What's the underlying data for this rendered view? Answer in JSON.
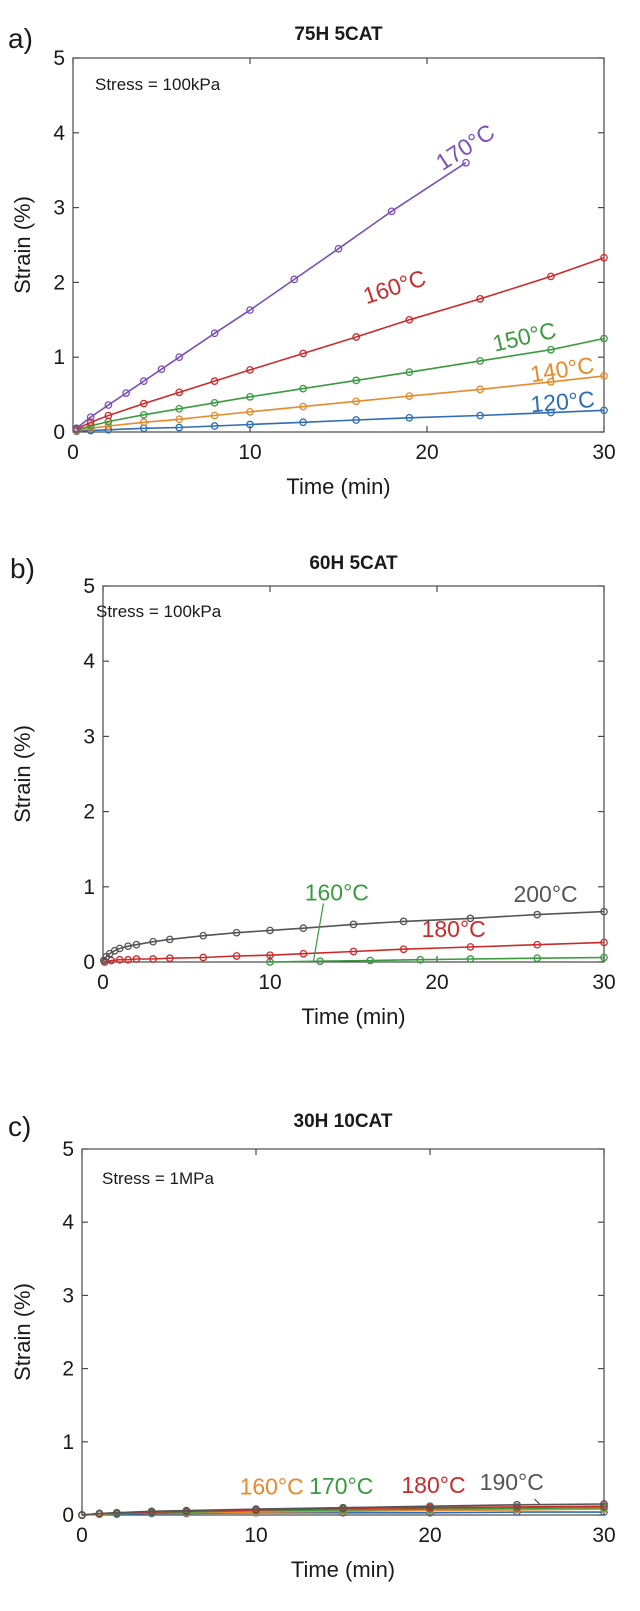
{
  "panels": [
    {
      "label": "a)",
      "title": "75H 5CAT",
      "annotation": "Stress = 100kPa",
      "xlabel": "Time (min)",
      "ylabel": "Strain (%)"
    },
    {
      "label": "b)",
      "title": "60H 5CAT",
      "annotation": "Stress = 100kPa",
      "xlabel": "Time (min)",
      "ylabel": "Strain (%)"
    },
    {
      "label": "c)",
      "title": "30H 10CAT",
      "annotation": "Stress = 1MPa",
      "xlabel": "Time (min)",
      "ylabel": "Strain (%)"
    }
  ],
  "chart_data": [
    {
      "type": "line",
      "title": "75H 5CAT",
      "xlabel": "Time (min)",
      "ylabel": "Strain (%)",
      "xlim": [
        0,
        30
      ],
      "ylim": [
        0,
        5
      ],
      "xticks": [
        0,
        10,
        20,
        30
      ],
      "yticks": [
        0,
        1,
        2,
        3,
        4,
        5
      ],
      "series": [
        {
          "name": "120°C",
          "color": "#2e6db5",
          "x": [
            0.2,
            1,
            2,
            4,
            6,
            8,
            10,
            13,
            16,
            19,
            23,
            27,
            30
          ],
          "y": [
            0.01,
            0.02,
            0.03,
            0.05,
            0.06,
            0.08,
            0.1,
            0.13,
            0.16,
            0.19,
            0.22,
            0.26,
            0.29
          ]
        },
        {
          "name": "140°C",
          "color": "#e8892a",
          "x": [
            0.2,
            1,
            2,
            4,
            6,
            8,
            10,
            13,
            16,
            19,
            23,
            27,
            30
          ],
          "y": [
            0.02,
            0.05,
            0.08,
            0.13,
            0.17,
            0.22,
            0.27,
            0.34,
            0.41,
            0.48,
            0.57,
            0.67,
            0.75
          ]
        },
        {
          "name": "150°C",
          "color": "#3a9a3f",
          "x": [
            0.2,
            1,
            2,
            4,
            6,
            8,
            10,
            13,
            16,
            19,
            23,
            27,
            30
          ],
          "y": [
            0.03,
            0.08,
            0.14,
            0.23,
            0.31,
            0.39,
            0.47,
            0.58,
            0.69,
            0.8,
            0.95,
            1.1,
            1.25
          ]
        },
        {
          "name": "160°C",
          "color": "#cc2a2a",
          "x": [
            0.2,
            1,
            2,
            4,
            6,
            8,
            10,
            13,
            16,
            19,
            23,
            27,
            30
          ],
          "y": [
            0.04,
            0.13,
            0.22,
            0.38,
            0.53,
            0.68,
            0.83,
            1.05,
            1.27,
            1.5,
            1.78,
            2.08,
            2.33
          ]
        },
        {
          "name": "170°C",
          "color": "#7b4fb8",
          "x": [
            0.2,
            1,
            2,
            3,
            4,
            5,
            6,
            8,
            10,
            12.5,
            15,
            18,
            22.2
          ],
          "y": [
            0.05,
            0.2,
            0.36,
            0.52,
            0.68,
            0.84,
            1.0,
            1.32,
            1.63,
            2.04,
            2.45,
            2.95,
            3.6
          ]
        }
      ]
    },
    {
      "type": "line",
      "title": "60H 5CAT",
      "xlabel": "Time (min)",
      "ylabel": "Strain (%)",
      "xlim": [
        0,
        30
      ],
      "ylim": [
        0,
        5
      ],
      "xticks": [
        0,
        10,
        20,
        30
      ],
      "yticks": [
        0,
        1,
        2,
        3,
        4,
        5
      ],
      "series": [
        {
          "name": "160°C",
          "color": "#3a9a3f",
          "x": [
            10,
            13,
            16,
            19,
            22,
            26,
            30
          ],
          "y": [
            0.0,
            0.01,
            0.02,
            0.03,
            0.04,
            0.05,
            0.06
          ]
        },
        {
          "name": "180°C",
          "color": "#cc2a2a",
          "x": [
            0.1,
            0.5,
            1,
            1.5,
            2,
            3,
            4,
            6,
            8,
            10,
            12,
            15,
            18,
            22,
            26,
            30
          ],
          "y": [
            0.0,
            0.02,
            0.03,
            0.03,
            0.04,
            0.04,
            0.05,
            0.06,
            0.08,
            0.09,
            0.11,
            0.14,
            0.17,
            0.2,
            0.23,
            0.26
          ]
        },
        {
          "name": "200°C",
          "color": "#555555",
          "x": [
            0.05,
            0.2,
            0.4,
            0.7,
            1,
            1.5,
            2,
            3,
            4,
            6,
            8,
            10,
            12,
            15,
            18,
            22,
            26,
            30
          ],
          "y": [
            0.02,
            0.07,
            0.11,
            0.15,
            0.18,
            0.21,
            0.23,
            0.27,
            0.3,
            0.35,
            0.39,
            0.42,
            0.45,
            0.5,
            0.54,
            0.58,
            0.63,
            0.67
          ]
        }
      ]
    },
    {
      "type": "line",
      "title": "30H 10CAT",
      "xlabel": "Time (min)",
      "ylabel": "Strain (%)",
      "xlim": [
        0,
        30
      ],
      "ylim": [
        0,
        5
      ],
      "xticks": [
        0,
        10,
        20,
        30
      ],
      "yticks": [
        0,
        1,
        2,
        3,
        4,
        5
      ],
      "series": [
        {
          "name": "",
          "color": "#2e6db5",
          "x": [
            0,
            1,
            2,
            4,
            6,
            10,
            15,
            20,
            25,
            30
          ],
          "y": [
            0.0,
            0.01,
            0.01,
            0.02,
            0.02,
            0.03,
            0.03,
            0.03,
            0.04,
            0.04
          ]
        },
        {
          "name": "160°C",
          "color": "#e8892a",
          "x": [
            0,
            1,
            2,
            4,
            6,
            10,
            15,
            20,
            25,
            30
          ],
          "y": [
            0.0,
            0.01,
            0.02,
            0.03,
            0.03,
            0.04,
            0.05,
            0.06,
            0.07,
            0.08
          ]
        },
        {
          "name": "170°C",
          "color": "#3a9a3f",
          "x": [
            0,
            1,
            2,
            4,
            6,
            10,
            15,
            20,
            25,
            30
          ],
          "y": [
            0.0,
            0.02,
            0.02,
            0.03,
            0.04,
            0.06,
            0.07,
            0.08,
            0.09,
            0.1
          ]
        },
        {
          "name": "180°C",
          "color": "#cc2a2a",
          "x": [
            0,
            1,
            2,
            4,
            6,
            10,
            15,
            20,
            25,
            30
          ],
          "y": [
            0.0,
            0.02,
            0.03,
            0.04,
            0.05,
            0.07,
            0.09,
            0.1,
            0.11,
            0.12
          ]
        },
        {
          "name": "190°C",
          "color": "#555555",
          "x": [
            0,
            1,
            2,
            4,
            6,
            10,
            15,
            20,
            25,
            30
          ],
          "y": [
            0.0,
            0.02,
            0.03,
            0.05,
            0.06,
            0.08,
            0.1,
            0.12,
            0.14,
            0.15
          ]
        }
      ]
    }
  ]
}
